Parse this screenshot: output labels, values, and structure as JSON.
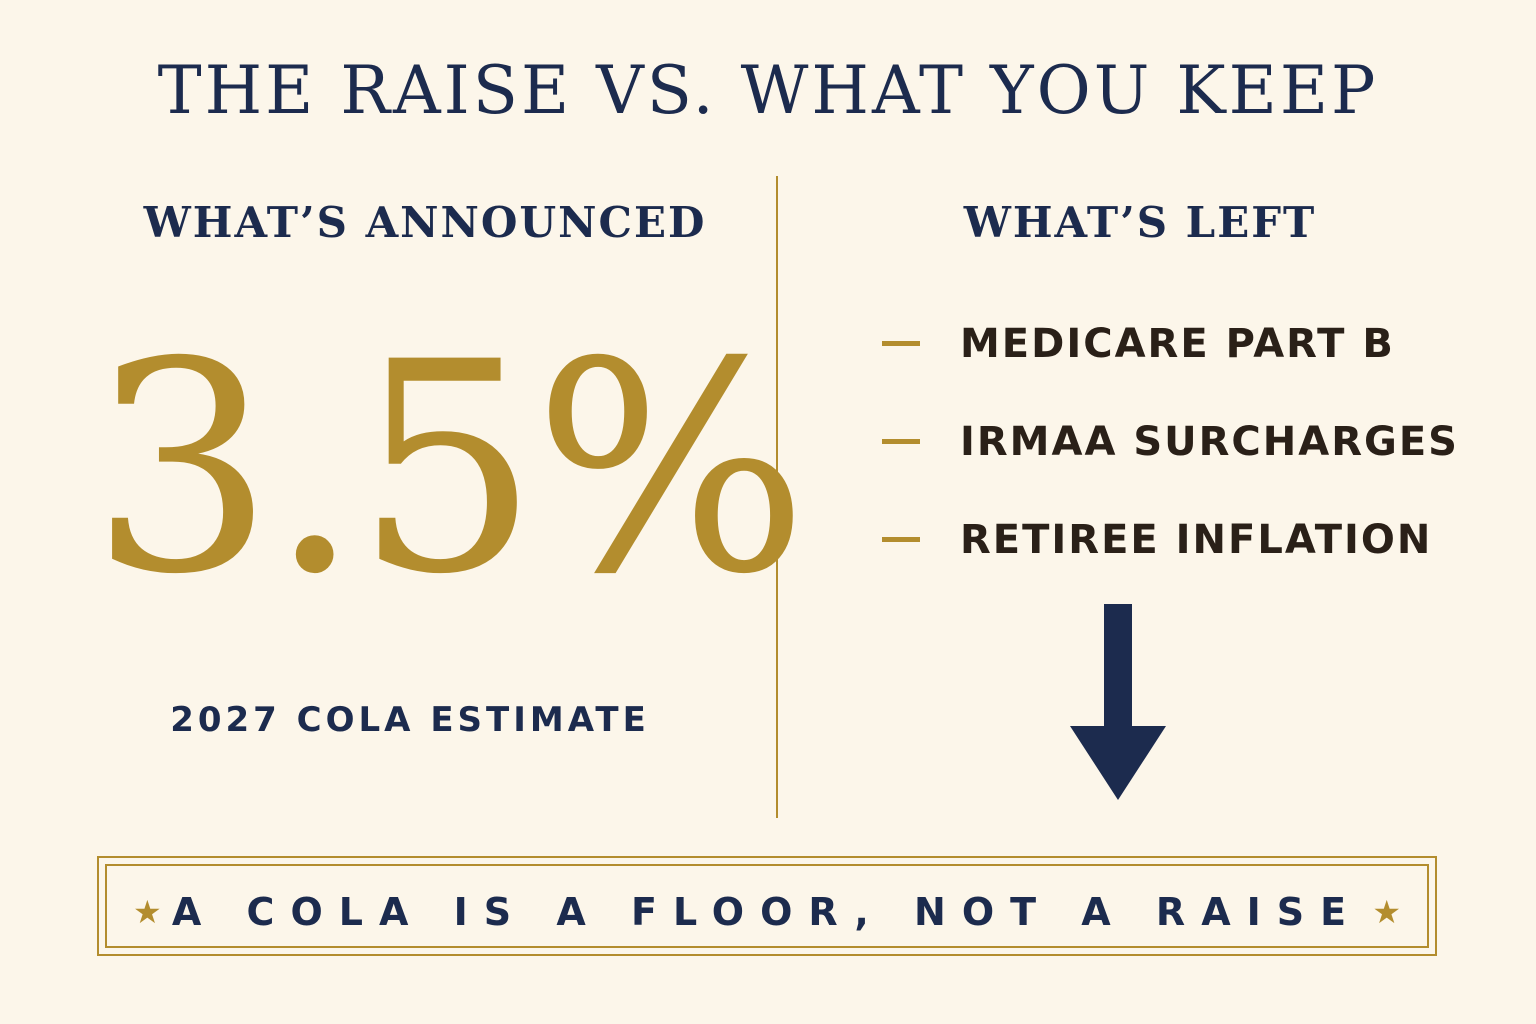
{
  "title": "THE RAISE VS. WHAT YOU KEEP",
  "left": {
    "heading": "WHAT’S ANNOUNCED",
    "value": "3.5%",
    "caption": "2027 COLA ESTIMATE"
  },
  "right": {
    "heading": "WHAT’S LEFT",
    "items": [
      {
        "label": "MEDICARE PART B"
      },
      {
        "label": "IRMAA SURCHARGES"
      },
      {
        "label": "RETIREE INFLATION"
      }
    ],
    "arrow_icon": "down-arrow-icon"
  },
  "banner": {
    "text": "A COLA IS A FLOOR, NOT A RAISE",
    "star_icon": "star-icon",
    "star_glyph": "★"
  },
  "colors": {
    "background": "#fcf6ea",
    "navy": "#1c2b4e",
    "gold": "#b38d2e",
    "dark_brown": "#2a2018"
  }
}
